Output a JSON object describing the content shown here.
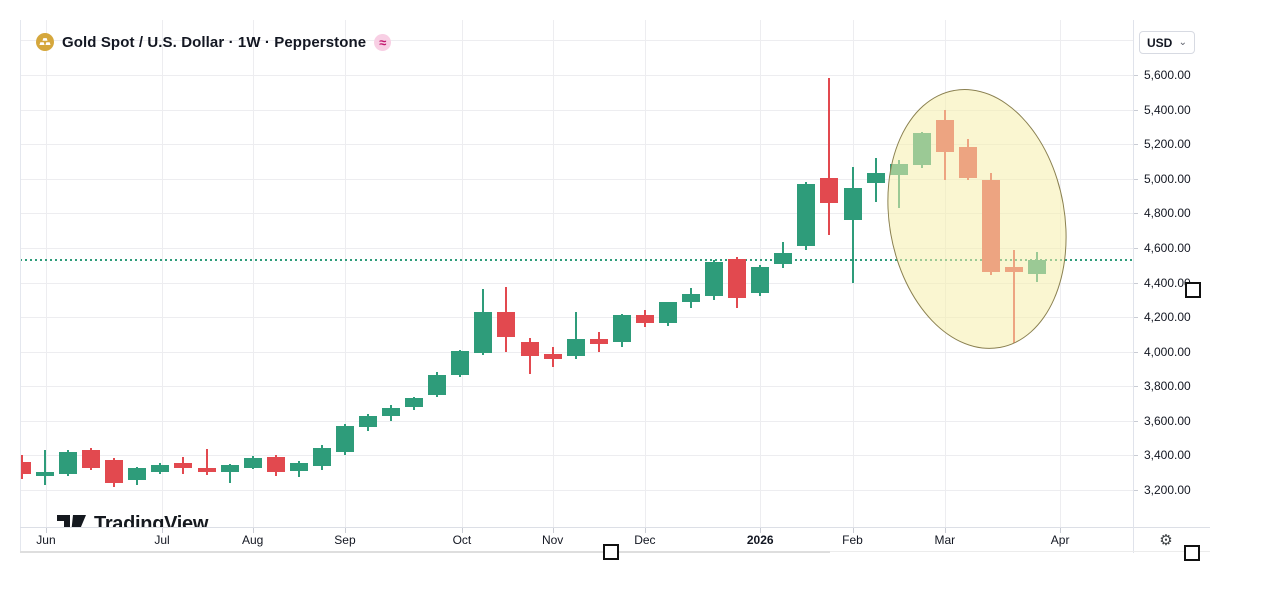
{
  "header": {
    "symbol_title": "Gold Spot / U.S. Dollar · 1W · Pepperstone",
    "symbol_icon": "gold-bars-icon",
    "badge": "≈",
    "currency": "USD",
    "chevron": "⌄"
  },
  "logo": {
    "text": "TradingView"
  },
  "gear_icon": "⚙",
  "chart_data": {
    "type": "candlestick",
    "title": "Gold Spot / U.S. Dollar",
    "interval": "1W",
    "provider": "Pepperstone",
    "quote_currency": "USD",
    "grid": true,
    "price_axis": {
      "side": "right",
      "min": 3200,
      "max": 5600,
      "step": 200,
      "labels": [
        {
          "label": "5,600.00",
          "value": 5600
        },
        {
          "label": "5,400.00",
          "value": 5400
        },
        {
          "label": "5,200.00",
          "value": 5200
        },
        {
          "label": "5,000.00",
          "value": 5000
        },
        {
          "label": "4,800.00",
          "value": 4800
        },
        {
          "label": "4,600.00",
          "value": 4600
        },
        {
          "label": "4,400.00",
          "value": 4400
        },
        {
          "label": "4,200.00",
          "value": 4200
        },
        {
          "label": "4,000.00",
          "value": 4000
        },
        {
          "label": "3,800.00",
          "value": 3800
        },
        {
          "label": "3,600.00",
          "value": 3600
        },
        {
          "label": "3,400.00",
          "value": 3400
        },
        {
          "label": "3,200.00",
          "value": 3200
        }
      ]
    },
    "time_axis": {
      "ticks": [
        {
          "label": "Jun",
          "index": 1.04,
          "bold": false
        },
        {
          "label": "Jul",
          "index": 6.07,
          "bold": false
        },
        {
          "label": "Aug",
          "index": 10,
          "bold": false
        },
        {
          "label": "Sep",
          "index": 14,
          "bold": false
        },
        {
          "label": "Oct",
          "index": 19.07,
          "bold": false
        },
        {
          "label": "Nov",
          "index": 23,
          "bold": false
        },
        {
          "label": "Dec",
          "index": 27,
          "bold": false
        },
        {
          "label": "2026",
          "index": 32,
          "bold": true
        },
        {
          "label": "Feb",
          "index": 36,
          "bold": false
        },
        {
          "label": "Mar",
          "index": 40,
          "bold": false
        },
        {
          "label": "Apr",
          "index": 45,
          "bold": false
        }
      ]
    },
    "colors": {
      "up": "#2e9c7a",
      "down": "#e2494f",
      "last_price_line": "#2e9c7a"
    },
    "last_price": 4530,
    "candle_columns": [
      "open",
      "high",
      "low",
      "close"
    ],
    "candles": [
      [
        3360,
        3400,
        3265,
        3290
      ],
      [
        3280,
        3430,
        3230,
        3305
      ],
      [
        3290,
        3430,
        3280,
        3420
      ],
      [
        3430,
        3445,
        3315,
        3325
      ],
      [
        3375,
        3385,
        3215,
        3240
      ],
      [
        3260,
        3335,
        3230,
        3330
      ],
      [
        3305,
        3355,
        3290,
        3345
      ],
      [
        3355,
        3390,
        3295,
        3330
      ],
      [
        3330,
        3435,
        3285,
        3305
      ],
      [
        3305,
        3350,
        3240,
        3345
      ],
      [
        3330,
        3395,
        3320,
        3385
      ],
      [
        3390,
        3400,
        3280,
        3305
      ],
      [
        3310,
        3365,
        3275,
        3355
      ],
      [
        3340,
        3460,
        3315,
        3445
      ],
      [
        3420,
        3580,
        3405,
        3570
      ],
      [
        3565,
        3640,
        3540,
        3630
      ],
      [
        3630,
        3690,
        3600,
        3675
      ],
      [
        3680,
        3740,
        3665,
        3730
      ],
      [
        3750,
        3880,
        3735,
        3865
      ],
      [
        3865,
        4010,
        3855,
        4005
      ],
      [
        3990,
        4365,
        3980,
        4230
      ],
      [
        4230,
        4375,
        4000,
        4085
      ],
      [
        4055,
        4080,
        3870,
        3975
      ],
      [
        3985,
        4025,
        3910,
        3960
      ],
      [
        3975,
        4230,
        3955,
        4075
      ],
      [
        4075,
        4115,
        4000,
        4045
      ],
      [
        4055,
        4215,
        4025,
        4210
      ],
      [
        4210,
        4240,
        4140,
        4165
      ],
      [
        4165,
        4290,
        4150,
        4285
      ],
      [
        4285,
        4370,
        4250,
        4335
      ],
      [
        4320,
        4530,
        4300,
        4520
      ],
      [
        4535,
        4545,
        4255,
        4310
      ],
      [
        4340,
        4500,
        4320,
        4490
      ],
      [
        4505,
        4635,
        4485,
        4570
      ],
      [
        4610,
        4980,
        4590,
        4970
      ],
      [
        5005,
        5585,
        4675,
        4860
      ],
      [
        4760,
        5070,
        4395,
        4945
      ],
      [
        4975,
        5120,
        4865,
        5035
      ],
      [
        5020,
        5110,
        4830,
        5085
      ],
      [
        5080,
        5270,
        5060,
        5265
      ],
      [
        5340,
        5400,
        4990,
        5155
      ],
      [
        5185,
        5230,
        4990,
        5005
      ],
      [
        4995,
        5035,
        4445,
        4460
      ],
      [
        4490,
        4590,
        4050,
        4460
      ],
      [
        4450,
        4575,
        4400,
        4530
      ]
    ],
    "annotation": {
      "type": "ellipse",
      "center_week_index": 41.4,
      "center_price": 4765,
      "radius_weeks": 3.81,
      "radius_price": 758,
      "rotation_deg": -10,
      "fill": "rgba(246,238,172,0.55)",
      "stroke": "#8a8050"
    }
  }
}
